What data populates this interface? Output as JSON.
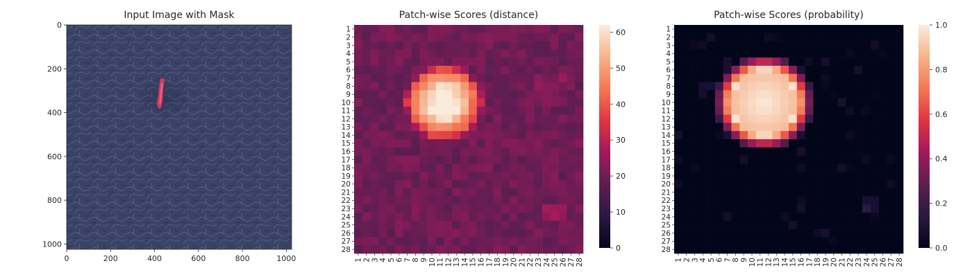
{
  "chart_data": [
    {
      "type": "image",
      "title": "Input Image with Mask",
      "xlabel": "",
      "ylabel": "",
      "xlim": [
        0,
        1024
      ],
      "ylim": [
        1024,
        0
      ],
      "xticks": [
        "0",
        "200",
        "400",
        "600",
        "800",
        "1000"
      ],
      "yticks": [
        "0",
        "200",
        "400",
        "600",
        "800",
        "1000"
      ],
      "mask_region": {
        "x_range": [
          400,
          440
        ],
        "y_range": [
          250,
          370
        ]
      }
    },
    {
      "type": "heatmap",
      "title": "Patch-wise Scores (distance)",
      "xlabel": "",
      "ylabel": "",
      "colormap": "rocket",
      "grid_size": 28,
      "xticklabels": [
        "1",
        "2",
        "3",
        "4",
        "5",
        "6",
        "7",
        "8",
        "9",
        "10",
        "11",
        "12",
        "13",
        "14",
        "15",
        "16",
        "17",
        "18",
        "19",
        "20",
        "21",
        "22",
        "23",
        "24",
        "25",
        "26",
        "27",
        "28"
      ],
      "yticklabels": [
        "1",
        "2",
        "3",
        "4",
        "5",
        "6",
        "7",
        "8",
        "9",
        "10",
        "11",
        "12",
        "13",
        "14",
        "15",
        "16",
        "17",
        "18",
        "19",
        "20",
        "21",
        "22",
        "23",
        "24",
        "25",
        "26",
        "27",
        "28"
      ],
      "colorbar_range": [
        0,
        62
      ],
      "colorbar_ticks": [
        "0",
        "10",
        "20",
        "30",
        "40",
        "50",
        "60"
      ],
      "background_level": 20,
      "hot_region": {
        "center_row": 10,
        "center_col": 11.5,
        "peak_value": 62
      }
    },
    {
      "type": "heatmap",
      "title": "Patch-wise Scores (probability)",
      "xlabel": "",
      "ylabel": "",
      "colormap": "rocket",
      "grid_size": 28,
      "xticklabels": [
        "1",
        "2",
        "3",
        "4",
        "5",
        "6",
        "7",
        "8",
        "9",
        "10",
        "11",
        "12",
        "13",
        "14",
        "15",
        "16",
        "17",
        "18",
        "19",
        "20",
        "21",
        "22",
        "23",
        "24",
        "25",
        "26",
        "27",
        "28"
      ],
      "yticklabels": [
        "1",
        "2",
        "3",
        "4",
        "5",
        "6",
        "7",
        "8",
        "9",
        "10",
        "11",
        "12",
        "13",
        "14",
        "15",
        "16",
        "17",
        "18",
        "19",
        "20",
        "21",
        "22",
        "23",
        "24",
        "25",
        "26",
        "27",
        "28"
      ],
      "colorbar_range": [
        0,
        1
      ],
      "colorbar_ticks": [
        "0.0",
        "0.2",
        "0.4",
        "0.6",
        "0.8",
        "1.0"
      ],
      "background_level": 0,
      "hot_region": {
        "center_row": 10,
        "center_col": 11.5,
        "peak_value": 1.0
      }
    }
  ]
}
